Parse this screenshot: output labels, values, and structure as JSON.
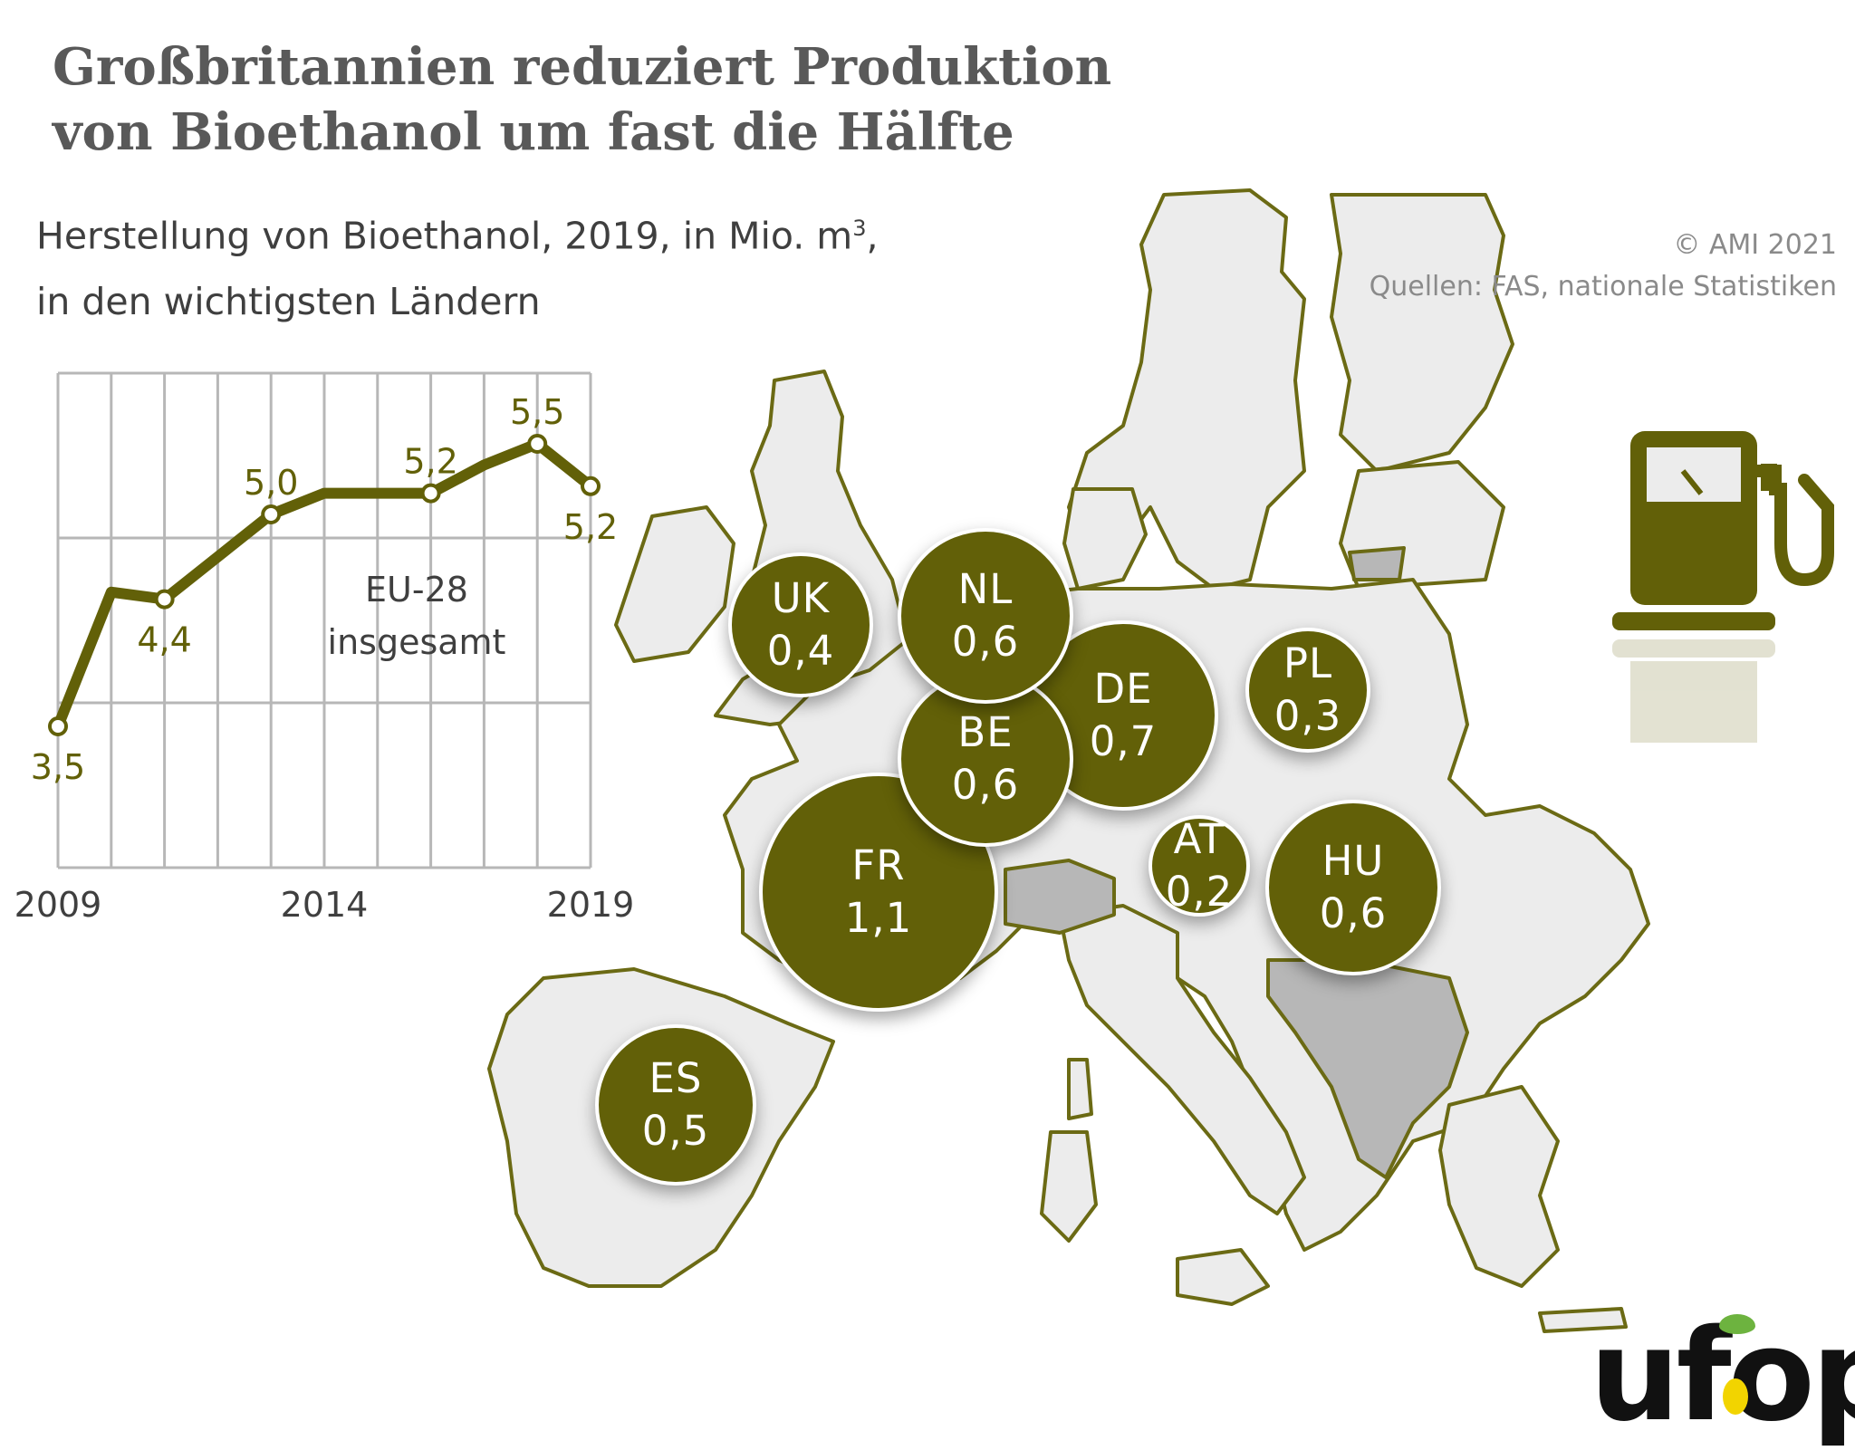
{
  "title": {
    "line1": "Großbritannien reduziert Produktion",
    "line2": "von Bioethanol um fast die Hälfte"
  },
  "subtitle": {
    "line1_main": "Herstellung von Bioethanol, 2019, in Mio. m",
    "line1_sup": "3",
    "line1_tail": ",",
    "line2": "in den wichtigsten Ländern"
  },
  "credits": {
    "copyright": "© AMI 2021",
    "source": "Quellen: FAS, nationale Statistiken"
  },
  "logo": {
    "text": "ufop"
  },
  "icon": {
    "name": "fuel-pump-icon"
  },
  "colors": {
    "primary": "#626008",
    "map_land": "#ececec",
    "map_nonEU": "#b7b7b7",
    "grid": "#b7b7b7",
    "text_dark": "#3f3f3f",
    "title": "#595959"
  },
  "chart_data": [
    {
      "type": "line",
      "title": "",
      "series": [
        {
          "name": "EU-28 insgesamt",
          "x": [
            2009,
            2010,
            2011,
            2012,
            2013,
            2014,
            2015,
            2016,
            2017,
            2018,
            2019
          ],
          "values": [
            3.5,
            4.45,
            4.4,
            4.7,
            5.0,
            5.15,
            5.15,
            5.15,
            5.35,
            5.5,
            5.2
          ]
        }
      ],
      "point_labels": [
        {
          "x": 2009,
          "text": "3,5"
        },
        {
          "x": 2011,
          "text": "4,4"
        },
        {
          "x": 2013,
          "text": "5,0"
        },
        {
          "x": 2016,
          "text": "5,2"
        },
        {
          "x": 2018,
          "text": "5,5"
        },
        {
          "x": 2019,
          "text": "5,2"
        }
      ],
      "annotation": [
        "EU-28",
        "insgesamt"
      ],
      "xticks": [
        "2009",
        "2014",
        "2019"
      ],
      "xlim": [
        2009,
        2019
      ],
      "ylim": [
        2.5,
        6.0
      ],
      "grid": true,
      "xlabel": "",
      "ylabel": ""
    },
    {
      "type": "bubble-map",
      "title": "",
      "points": [
        {
          "label": "UK",
          "value": 0.4,
          "value_text": "0,4"
        },
        {
          "label": "NL",
          "value": 0.6,
          "value_text": "0,6"
        },
        {
          "label": "BE",
          "value": 0.6,
          "value_text": "0,6"
        },
        {
          "label": "DE",
          "value": 0.7,
          "value_text": "0,7"
        },
        {
          "label": "PL",
          "value": 0.3,
          "value_text": "0,3"
        },
        {
          "label": "FR",
          "value": 1.1,
          "value_text": "1,1"
        },
        {
          "label": "AT",
          "value": 0.2,
          "value_text": "0,2"
        },
        {
          "label": "HU",
          "value": 0.6,
          "value_text": "0,6"
        },
        {
          "label": "ES",
          "value": 0.5,
          "value_text": "0,5"
        }
      ]
    }
  ]
}
